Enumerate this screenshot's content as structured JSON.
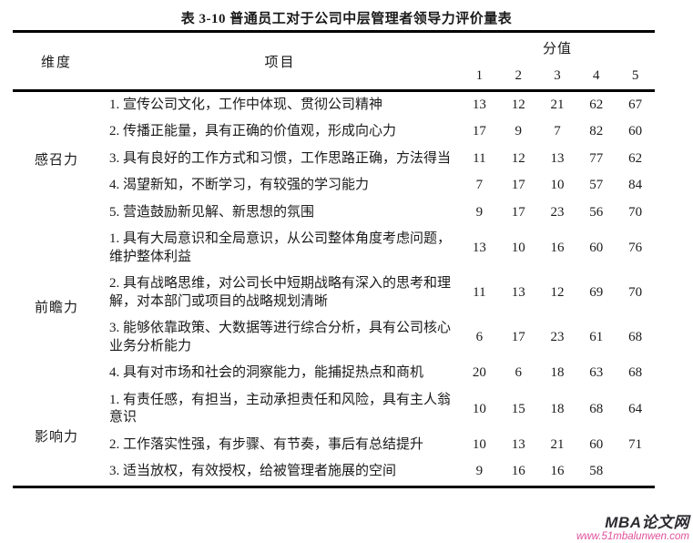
{
  "page": {
    "title": "表 3-10  普通员工对于公司中层管理者领导力评价量表"
  },
  "header": {
    "dimension": "维度",
    "item": "项目",
    "score_group": "分值",
    "score_columns": [
      "1",
      "2",
      "3",
      "4",
      "5"
    ]
  },
  "table": {
    "groups": [
      {
        "dimension": "感召力",
        "items": [
          {
            "text": "1. 宣传公司文化，工作中体现、贯彻公司精神",
            "scores": [
              "13",
              "12",
              "21",
              "62",
              "67"
            ]
          },
          {
            "text": "2. 传播正能量，具有正确的价值观，形成向心力",
            "scores": [
              "17",
              "9",
              "7",
              "82",
              "60"
            ]
          },
          {
            "text": "3. 具有良好的工作方式和习惯，工作思路正确，方法得当",
            "scores": [
              "11",
              "12",
              "13",
              "77",
              "62"
            ]
          },
          {
            "text": "4. 渴望新知，不断学习，有较强的学习能力",
            "scores": [
              "7",
              "17",
              "10",
              "57",
              "84"
            ]
          },
          {
            "text": "5. 营造鼓励新见解、新思想的氛围",
            "scores": [
              "9",
              "17",
              "23",
              "56",
              "70"
            ]
          }
        ]
      },
      {
        "dimension": "前瞻力",
        "items": [
          {
            "text": "1. 具有大局意识和全局意识，从公司整体角度考虑问题，维护整体利益",
            "scores": [
              "13",
              "10",
              "16",
              "60",
              "76"
            ]
          },
          {
            "text": "2. 具有战略思维，对公司长中短期战略有深入的思考和理解，对本部门或项目的战略规划清晰",
            "scores": [
              "11",
              "13",
              "12",
              "69",
              "70"
            ]
          },
          {
            "text": "3. 能够依靠政策、大数据等进行综合分析，具有公司核心业务分析能力",
            "scores": [
              "6",
              "17",
              "23",
              "61",
              "68"
            ]
          },
          {
            "text": "4. 具有对市场和社会的洞察能力，能捕捉热点和商机",
            "scores": [
              "20",
              "6",
              "18",
              "63",
              "68"
            ]
          }
        ]
      },
      {
        "dimension": "影响力",
        "items": [
          {
            "text": "1. 有责任感，有担当，主动承担责任和风险，具有主人翁意识",
            "scores": [
              "10",
              "15",
              "18",
              "68",
              "64"
            ]
          },
          {
            "text": "2. 工作落实性强，有步骤、有节奏，事后有总结提升",
            "scores": [
              "10",
              "13",
              "21",
              "60",
              "71"
            ]
          },
          {
            "text": "3. 适当放权，有效授权，给被管理者施展的空间",
            "scores": [
              "9",
              "16",
              "16",
              "58",
              ""
            ]
          }
        ]
      }
    ]
  },
  "watermark": {
    "site_name": "MBA论文网",
    "url": "www.51mbalunwen.com",
    "name_color": "#2b2b30",
    "url_color": "#e0509b"
  }
}
